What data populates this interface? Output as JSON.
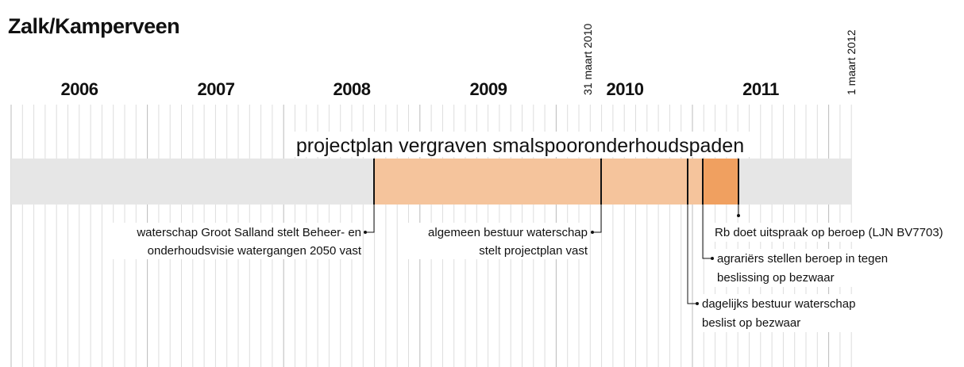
{
  "title": "Zalk/Kamperveen",
  "years": [
    "2006",
    "2007",
    "2008",
    "2009",
    "2010",
    "2011"
  ],
  "dates": [
    "31 maart 2010",
    "1 maart 2012"
  ],
  "bar_label": "projectplan vergraven smalspooronderhoudspaden",
  "events": [
    {
      "lines": [
        "waterschap Groot Salland stelt Beheer- en",
        "onderhoudsvisie watergangen 2050 vast"
      ]
    },
    {
      "lines": [
        "algemeen bestuur waterschap",
        "stelt projectplan vast"
      ]
    },
    {
      "lines": [
        "Rb doet uitspraak op beroep (LJN BV7703)"
      ]
    },
    {
      "lines": [
        "agrariërs stellen beroep in tegen",
        "beslissing op bezwaar"
      ]
    },
    {
      "lines": [
        "dagelijks bestuur waterschap",
        "beslist op bezwaar"
      ]
    }
  ]
}
